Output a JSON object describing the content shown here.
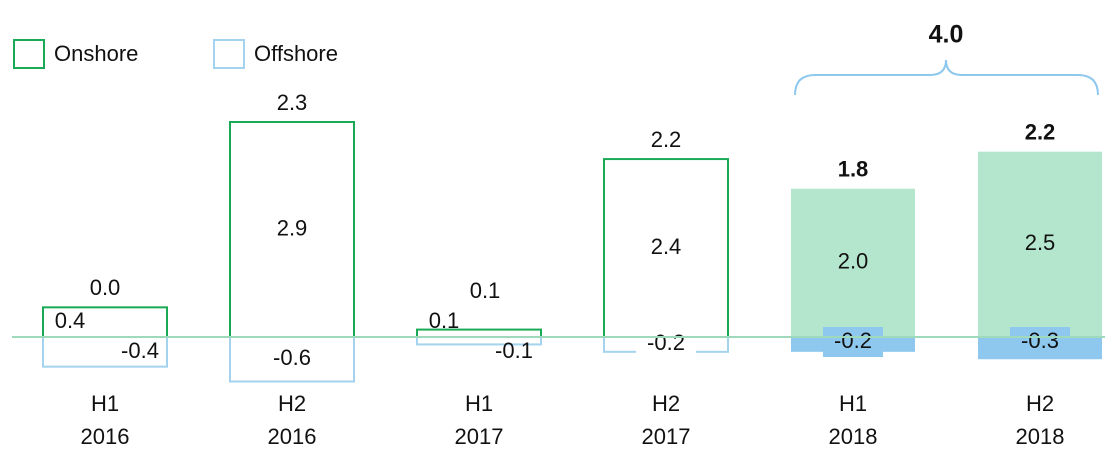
{
  "chart_data": {
    "type": "bar",
    "stacked": true,
    "categories": [
      [
        "H1",
        "2016"
      ],
      [
        "H2",
        "2016"
      ],
      [
        "H1",
        "2017"
      ],
      [
        "H2",
        "2017"
      ],
      [
        "H1",
        "2018"
      ],
      [
        "H2",
        "2018"
      ]
    ],
    "series": [
      {
        "name": "Onshore",
        "color": "#1aaa55",
        "fill_color": "#b3e6cc",
        "values": [
          0.4,
          2.9,
          0.1,
          2.4,
          2.0,
          2.5
        ],
        "value_labels": [
          "0.4",
          "2.9",
          "0.1",
          "2.4",
          "2.0",
          "2.5"
        ]
      },
      {
        "name": "Offshore",
        "color": "#a3d3ef",
        "fill_color": "#8ec8ee",
        "values": [
          -0.4,
          -0.6,
          -0.1,
          -0.2,
          -0.2,
          -0.3
        ],
        "value_labels": [
          "-0.4",
          "-0.6",
          "-0.1",
          "-0.2",
          "-0.2",
          "-0.3"
        ]
      }
    ],
    "totals": {
      "values": [
        0.0,
        2.3,
        0.1,
        2.2,
        1.8,
        2.2
      ],
      "value_labels": [
        "0.0",
        "2.3",
        "0.1",
        "2.2",
        "1.8",
        "2.2"
      ]
    },
    "filled": [
      false,
      false,
      false,
      false,
      true,
      true
    ],
    "annotation": "4.0",
    "legend": "top-left"
  }
}
